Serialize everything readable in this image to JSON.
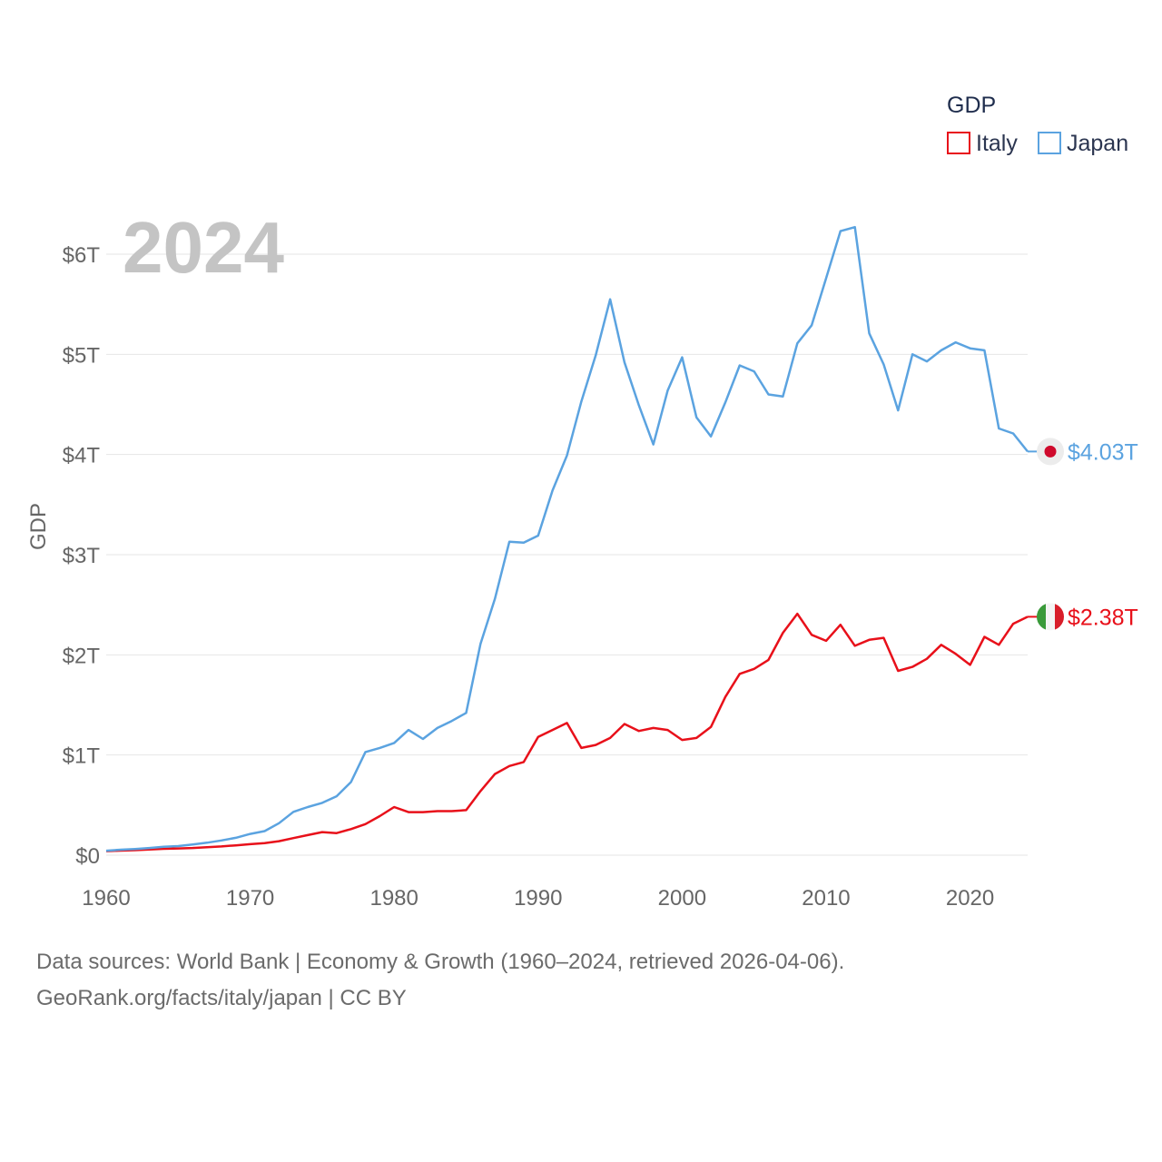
{
  "chart_data": {
    "type": "line",
    "year_label": "2024",
    "legend_title": "GDP",
    "ylabel": "GDP",
    "ylim": [
      0,
      6.3
    ],
    "xlim": [
      1960,
      2024
    ],
    "y_ticks": [
      {
        "value": 0,
        "label": "$0"
      },
      {
        "value": 1,
        "label": "$1T"
      },
      {
        "value": 2,
        "label": "$2T"
      },
      {
        "value": 3,
        "label": "$3T"
      },
      {
        "value": 4,
        "label": "$4T"
      },
      {
        "value": 5,
        "label": "$5T"
      },
      {
        "value": 6,
        "label": "$6T"
      }
    ],
    "x_ticks": [
      {
        "value": 1960,
        "label": "1960"
      },
      {
        "value": 1970,
        "label": "1970"
      },
      {
        "value": 1980,
        "label": "1980"
      },
      {
        "value": 1990,
        "label": "1990"
      },
      {
        "value": 2000,
        "label": "2000"
      },
      {
        "value": 2010,
        "label": "2010"
      },
      {
        "value": 2020,
        "label": "2020"
      }
    ],
    "x": [
      1960,
      1961,
      1962,
      1963,
      1964,
      1965,
      1966,
      1967,
      1968,
      1969,
      1970,
      1971,
      1972,
      1973,
      1974,
      1975,
      1976,
      1977,
      1978,
      1979,
      1980,
      1981,
      1982,
      1983,
      1984,
      1985,
      1986,
      1987,
      1988,
      1989,
      1990,
      1991,
      1992,
      1993,
      1994,
      1995,
      1996,
      1997,
      1998,
      1999,
      2000,
      2001,
      2002,
      2003,
      2004,
      2005,
      2006,
      2007,
      2008,
      2009,
      2010,
      2011,
      2012,
      2013,
      2014,
      2015,
      2016,
      2017,
      2018,
      2019,
      2020,
      2021,
      2022,
      2023,
      2024
    ],
    "series": [
      {
        "name": "Italy",
        "color": "#e8101a",
        "end_label": "$2.38T",
        "flag": "italy",
        "values": [
          0.04,
          0.045,
          0.05,
          0.057,
          0.063,
          0.067,
          0.072,
          0.08,
          0.087,
          0.098,
          0.11,
          0.12,
          0.14,
          0.17,
          0.2,
          0.23,
          0.22,
          0.26,
          0.31,
          0.39,
          0.48,
          0.43,
          0.43,
          0.44,
          0.44,
          0.45,
          0.64,
          0.81,
          0.89,
          0.93,
          1.18,
          1.25,
          1.32,
          1.07,
          1.1,
          1.17,
          1.31,
          1.24,
          1.27,
          1.25,
          1.15,
          1.17,
          1.28,
          1.58,
          1.81,
          1.86,
          1.95,
          2.22,
          2.41,
          2.2,
          2.14,
          2.3,
          2.09,
          2.15,
          2.17,
          1.84,
          1.88,
          1.96,
          2.1,
          2.01,
          1.9,
          2.18,
          2.1,
          2.31,
          2.38
        ]
      },
      {
        "name": "Japan",
        "color": "#5ba3e0",
        "end_label": "$4.03T",
        "flag": "japan",
        "values": [
          0.044,
          0.054,
          0.062,
          0.072,
          0.084,
          0.091,
          0.106,
          0.124,
          0.147,
          0.173,
          0.212,
          0.24,
          0.319,
          0.432,
          0.48,
          0.522,
          0.588,
          0.73,
          1.03,
          1.07,
          1.12,
          1.25,
          1.16,
          1.27,
          1.34,
          1.42,
          2.11,
          2.56,
          3.13,
          3.12,
          3.19,
          3.64,
          3.99,
          4.53,
          4.99,
          5.55,
          4.92,
          4.49,
          4.1,
          4.64,
          4.97,
          4.37,
          4.18,
          4.52,
          4.89,
          4.83,
          4.6,
          4.58,
          5.11,
          5.29,
          5.76,
          6.23,
          6.27,
          5.21,
          4.9,
          4.44,
          5.0,
          4.93,
          5.04,
          5.12,
          5.06,
          5.04,
          4.26,
          4.21,
          4.03
        ]
      }
    ]
  },
  "footer": {
    "line1": "Data sources: World Bank | Economy & Growth (1960–2024, retrieved 2026-04-06).",
    "line2": "GeoRank.org/facts/italy/japan | CC BY"
  }
}
